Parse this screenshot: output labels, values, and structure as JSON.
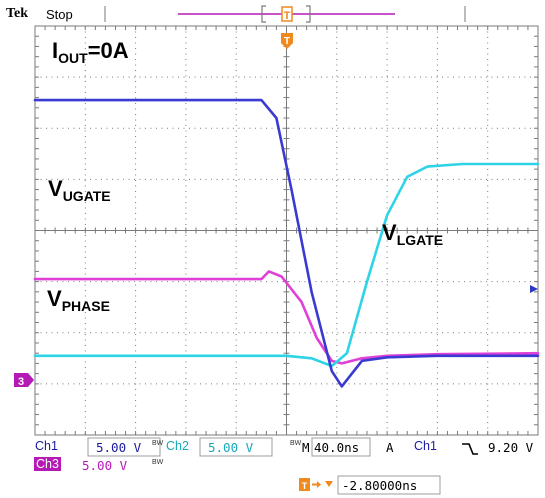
{
  "header": {
    "brand": "Tek",
    "acquisition_state": "Stop"
  },
  "annotations": {
    "iout_main": "I",
    "iout_sub": "OUT",
    "iout_rest": "=0A",
    "ugate_main": "V",
    "ugate_sub": "UGATE",
    "lgate_main": "V",
    "lgate_sub": "LGATE",
    "phase_main": "V",
    "phase_sub": "PHASE"
  },
  "markers": {
    "trigger_position": "T",
    "ch3_ground": "3",
    "timebase_window": "T"
  },
  "readout": {
    "ch1_label": "Ch1",
    "ch1_scale": "5.00 V",
    "ch2_label": "Ch2",
    "ch2_scale": "5.00 V",
    "ch3_label": "Ch3",
    "ch3_scale": "5.00 V",
    "bw_mark": "BW",
    "horiz_prefix": "M",
    "horiz_scale": "40.0ns",
    "trigger_mode": "A",
    "trigger_source": "Ch1",
    "trigger_slope_icon": "falling-edge-icon",
    "trigger_level": "9.20 V",
    "delay_value": "-2.80000ns"
  },
  "colors": {
    "background": "#ffffff",
    "grid": "#7a7a7a",
    "ch1": "#3a3ad2",
    "ch2": "#2ed4e6",
    "ch3": "#e040d8",
    "marker": "#f08a1e",
    "window": "#b61ab6"
  },
  "chart_data": {
    "type": "line",
    "divisions": {
      "x": 10,
      "y": 8
    },
    "time_per_div": "40.0ns",
    "volts_per_div": "5.00 V",
    "series": [
      {
        "channel": "Ch1",
        "x": [
          -5.0,
          -0.5,
          -0.2,
          0.1,
          0.5,
          0.9,
          1.1,
          1.3,
          1.5,
          2.0,
          3.0,
          5.0
        ],
        "y": [
          2.55,
          2.55,
          2.2,
          0.8,
          -1.2,
          -2.75,
          -3.05,
          -2.8,
          -2.55,
          -2.48,
          -2.45,
          -2.45
        ]
      },
      {
        "channel": "Ch2",
        "x": [
          -5.0,
          0.0,
          0.5,
          0.9,
          1.2,
          1.6,
          2.0,
          2.4,
          2.8,
          3.5,
          5.0
        ],
        "y": [
          -2.45,
          -2.45,
          -2.5,
          -2.65,
          -2.4,
          -1.0,
          0.3,
          1.05,
          1.25,
          1.3,
          1.3
        ]
      },
      {
        "channel": "Ch3",
        "x": [
          -5.0,
          -0.5,
          -0.35,
          -0.1,
          0.3,
          0.6,
          0.9,
          1.1,
          1.5,
          2.0,
          3.0,
          5.0
        ],
        "y": [
          -0.95,
          -0.95,
          -0.8,
          -0.9,
          -1.4,
          -2.1,
          -2.55,
          -2.6,
          -2.5,
          -2.45,
          -2.42,
          -2.4
        ]
      }
    ]
  }
}
